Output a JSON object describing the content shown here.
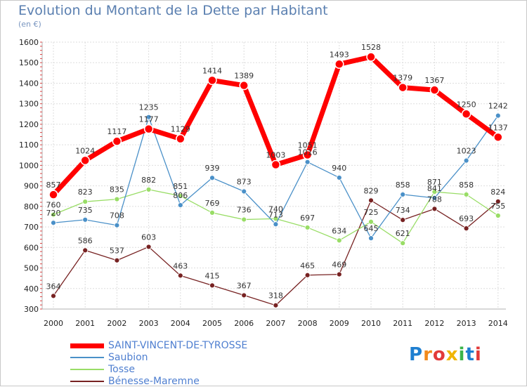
{
  "chart_data": {
    "type": "line",
    "title": "Evolution du Montant de la Dette par Habitant",
    "subtitle": "(en €)",
    "xlabel": "",
    "ylabel": "",
    "ylim": [
      300,
      1600
    ],
    "yticks": [
      300,
      400,
      500,
      600,
      700,
      800,
      900,
      1000,
      1100,
      1200,
      1300,
      1400,
      1500,
      1600
    ],
    "x": [
      "2000",
      "2001",
      "2002",
      "2003",
      "2004",
      "2005",
      "2006",
      "2007",
      "2008",
      "2009",
      "2010",
      "2011",
      "2012",
      "2013",
      "2014"
    ],
    "grid": true,
    "legend_position": "bottom-left",
    "series": [
      {
        "name": "SAINT-VINCENT-DE-TYROSSE",
        "color": "#ff0000",
        "values": [
          857,
          1024,
          1117,
          1177,
          1129,
          1414,
          1389,
          1003,
          1051,
          1493,
          1528,
          1379,
          1367,
          1250,
          1137
        ]
      },
      {
        "name": "Saubion",
        "color": "#4a90c8",
        "values": [
          720,
          735,
          708,
          1235,
          806,
          939,
          873,
          713,
          1016,
          940,
          645,
          858,
          841,
          1023,
          1242
        ]
      },
      {
        "name": "Tosse",
        "color": "#99dd66",
        "values": [
          760,
          823,
          835,
          882,
          851,
          769,
          736,
          740,
          697,
          634,
          725,
          621,
          871,
          858,
          755
        ]
      },
      {
        "name": "Bénesse-Maremne",
        "color": "#772222",
        "values": [
          364,
          586,
          537,
          603,
          463,
          415,
          367,
          318,
          465,
          469,
          829,
          734,
          788,
          693,
          824
        ]
      }
    ]
  },
  "logo": {
    "letters": [
      "P",
      "r",
      "o",
      "x",
      "i",
      "t",
      "i"
    ],
    "colors": [
      "#1e7fd0",
      "#f28a1c",
      "#e23a3a",
      "#f0b500",
      "#3bb54a",
      "#1e7fd0",
      "#e23a3a"
    ]
  }
}
